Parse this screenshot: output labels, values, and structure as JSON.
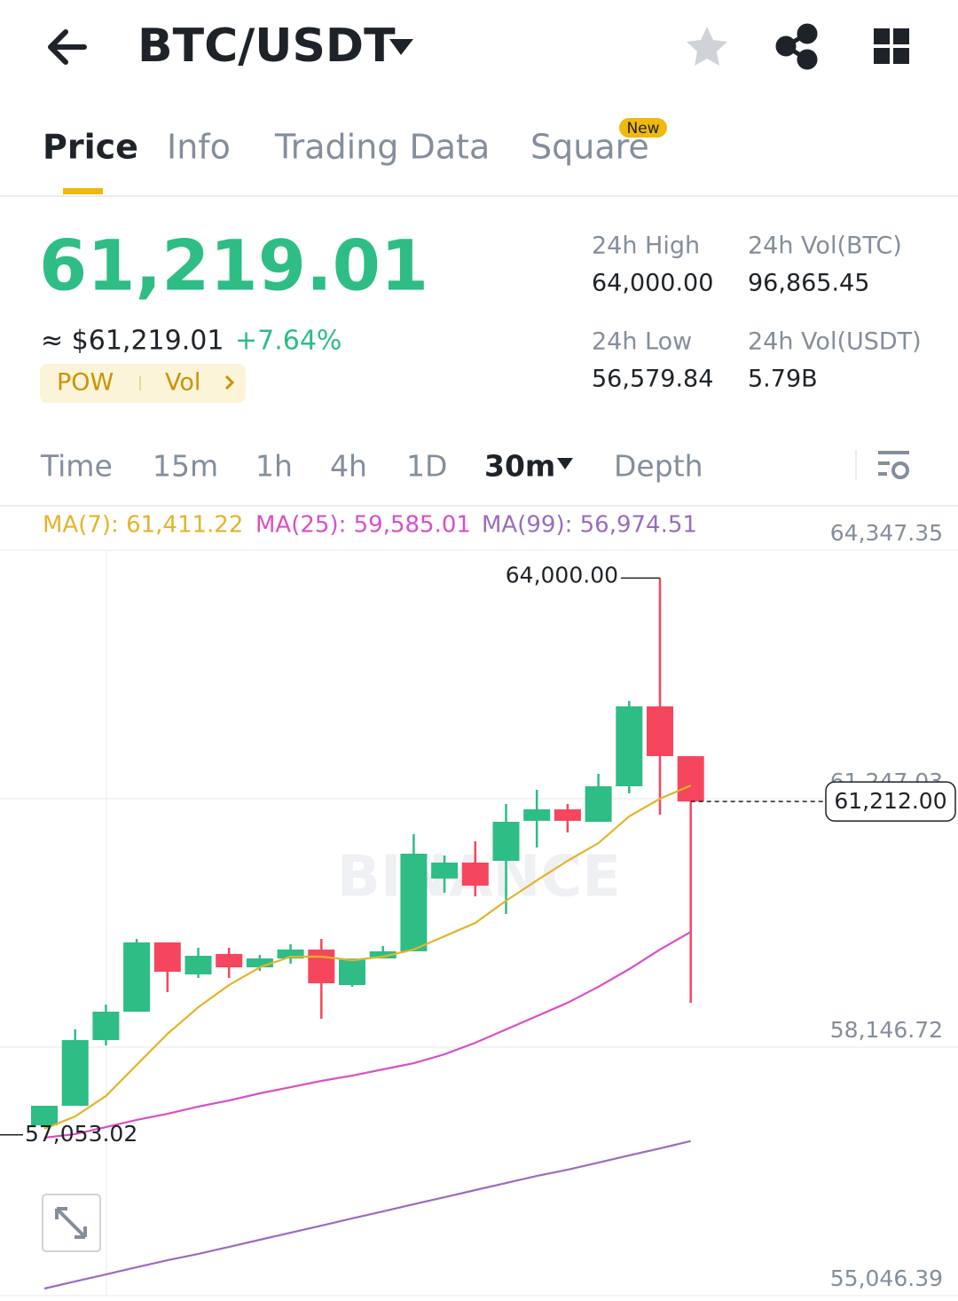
{
  "header": {
    "pair": "BTC/USDT"
  },
  "tabs": {
    "items": [
      "Price",
      "Info",
      "Trading Data",
      "Square"
    ],
    "badge": "New"
  },
  "ticker": {
    "last_price": "61,219.01",
    "approx_usd": "≈ $61,219.01",
    "change": "+7.64%",
    "tags": [
      "POW",
      "Vol"
    ],
    "stats": [
      {
        "label": "24h High",
        "value": "64,000.00"
      },
      {
        "label": "24h Vol(BTC)",
        "value": "96,865.45"
      },
      {
        "label": "24h Low",
        "value": "56,579.84"
      },
      {
        "label": "24h Vol(USDT)",
        "value": "5.79B"
      }
    ]
  },
  "intervals": [
    "Time",
    "15m",
    "1h",
    "4h",
    "1D",
    "30m",
    "Depth"
  ],
  "chart_data": {
    "type": "candlestick",
    "watermark": "BINANCE",
    "ylim": [
      55046.39,
      64347.35
    ],
    "yticks": [
      {
        "value": 55046.39,
        "label": "55,046.39"
      },
      {
        "value": 58146.72,
        "label": "58,146.72"
      },
      {
        "value": 61247.03,
        "label": "61,247.03"
      },
      {
        "value": 64347.35,
        "label": "64,347.35"
      }
    ],
    "grid": true,
    "up_color": "#2ebd85",
    "down_color": "#f6465d",
    "open": [
      57172,
      57416,
      58235,
      58590,
      59454,
      59055,
      59310,
      59143,
      59254,
      59365,
      58922,
      59254,
      59343,
      60251,
      60450,
      60472,
      60971,
      61114,
      60959,
      61402,
      62399,
      61778
    ],
    "high": [
      57416,
      58368,
      58678,
      59498,
      59454,
      59387,
      59387,
      59298,
      59431,
      59498,
      59254,
      59409,
      60804,
      60538,
      60716,
      61181,
      61358,
      61181,
      61557,
      62465,
      64000,
      61778
    ],
    "low": [
      57150,
      57416,
      58169,
      58590,
      58834,
      59011,
      59011,
      59099,
      59188,
      58501,
      58900,
      59254,
      59343,
      60074,
      60029,
      59808,
      60638,
      60826,
      60959,
      61314,
      61048,
      58701
    ],
    "close": [
      57416,
      58235,
      58590,
      59454,
      59088,
      59287,
      59143,
      59254,
      59365,
      58944,
      59254,
      59343,
      60561,
      60450,
      60162,
      60959,
      61114,
      60971,
      61402,
      62399,
      61778,
      61212
    ],
    "moving_averages": [
      {
        "label": "MA(7): 61,411.22",
        "color": "#e4b429",
        "values": [
          57128,
          57283,
          57538,
          57926,
          58313,
          58645,
          58922,
          59143,
          59276,
          59276,
          59232,
          59276,
          59365,
          59531,
          59697,
          59974,
          60228,
          60472,
          60693,
          61026,
          61247,
          61411.22
        ]
      },
      {
        "label": "MA(25): 59,585.01",
        "color": "#d94fc6",
        "values": [
          57017,
          57062,
          57150,
          57239,
          57316,
          57405,
          57482,
          57571,
          57648,
          57726,
          57792,
          57870,
          57947,
          58058,
          58202,
          58368,
          58534,
          58701,
          58900,
          59121,
          59365,
          59585.01
        ]
      },
      {
        "label": "MA(99): 56,974.51",
        "color": "#9a6cc0",
        "values": [
          55135,
          55224,
          55312,
          55401,
          55489,
          55567,
          55655,
          55744,
          55832,
          55921,
          56010,
          56098,
          56187,
          56275,
          56364,
          56452,
          56541,
          56618,
          56707,
          56796,
          56884,
          56974.51
        ]
      }
    ],
    "annotations": [
      {
        "value": 64000,
        "label": "64,000.00"
      },
      {
        "value": 57053.02,
        "label": "57,053.02"
      }
    ],
    "last_price": {
      "value": 61212,
      "label": "61,212.00"
    }
  }
}
